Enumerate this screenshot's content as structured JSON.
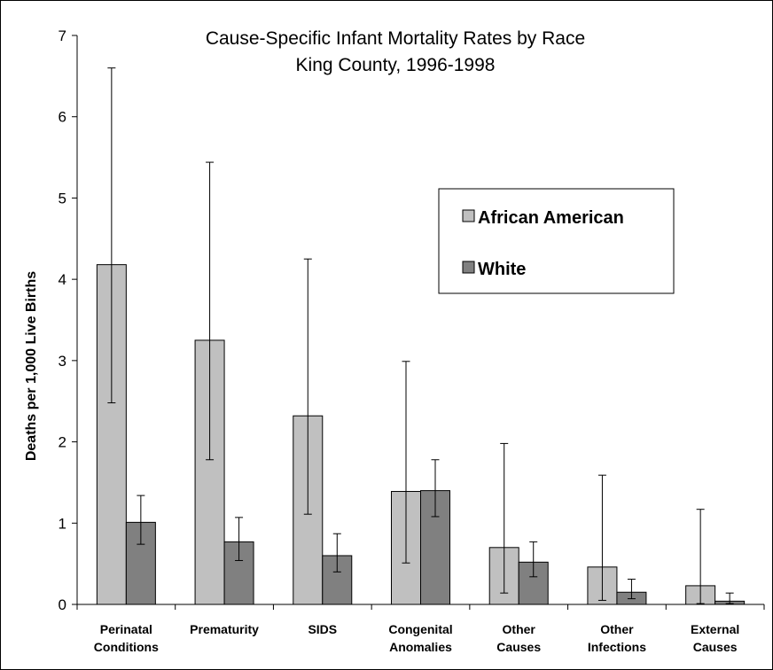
{
  "chart_data": {
    "type": "bar",
    "title": "Cause-Specific Infant Mortality Rates by Race",
    "subtitle": "King County, 1996-1998",
    "xlabel": "",
    "ylabel": "Deaths per 1,000 Live Births",
    "ylim": [
      0,
      7
    ],
    "yticks": [
      "0",
      "1",
      "2",
      "3",
      "4",
      "5",
      "6",
      "7"
    ],
    "categories": [
      [
        "Perinatal",
        "Conditions"
      ],
      [
        "Prematurity"
      ],
      [
        "SIDS"
      ],
      [
        "Congenital",
        "Anomalies"
      ],
      [
        "Other",
        "Causes"
      ],
      [
        "Other",
        "Infections"
      ],
      [
        "External",
        "Causes"
      ]
    ],
    "series": [
      {
        "name": "African American",
        "color": "#c0c0c0",
        "values": [
          4.18,
          3.25,
          2.32,
          1.39,
          0.7,
          0.46,
          0.23
        ],
        "error_low": [
          2.48,
          1.78,
          1.11,
          0.51,
          0.14,
          0.05,
          0.01
        ],
        "error_high": [
          6.6,
          5.44,
          4.25,
          2.99,
          1.98,
          1.59,
          1.17
        ]
      },
      {
        "name": "White",
        "color": "#808080",
        "values": [
          1.01,
          0.77,
          0.6,
          1.4,
          0.52,
          0.15,
          0.04
        ],
        "error_low": [
          0.74,
          0.54,
          0.4,
          1.08,
          0.34,
          0.07,
          0.01
        ],
        "error_high": [
          1.34,
          1.07,
          0.87,
          1.78,
          0.77,
          0.31,
          0.14
        ]
      }
    ],
    "legend_position": "top-right",
    "grid": false
  }
}
